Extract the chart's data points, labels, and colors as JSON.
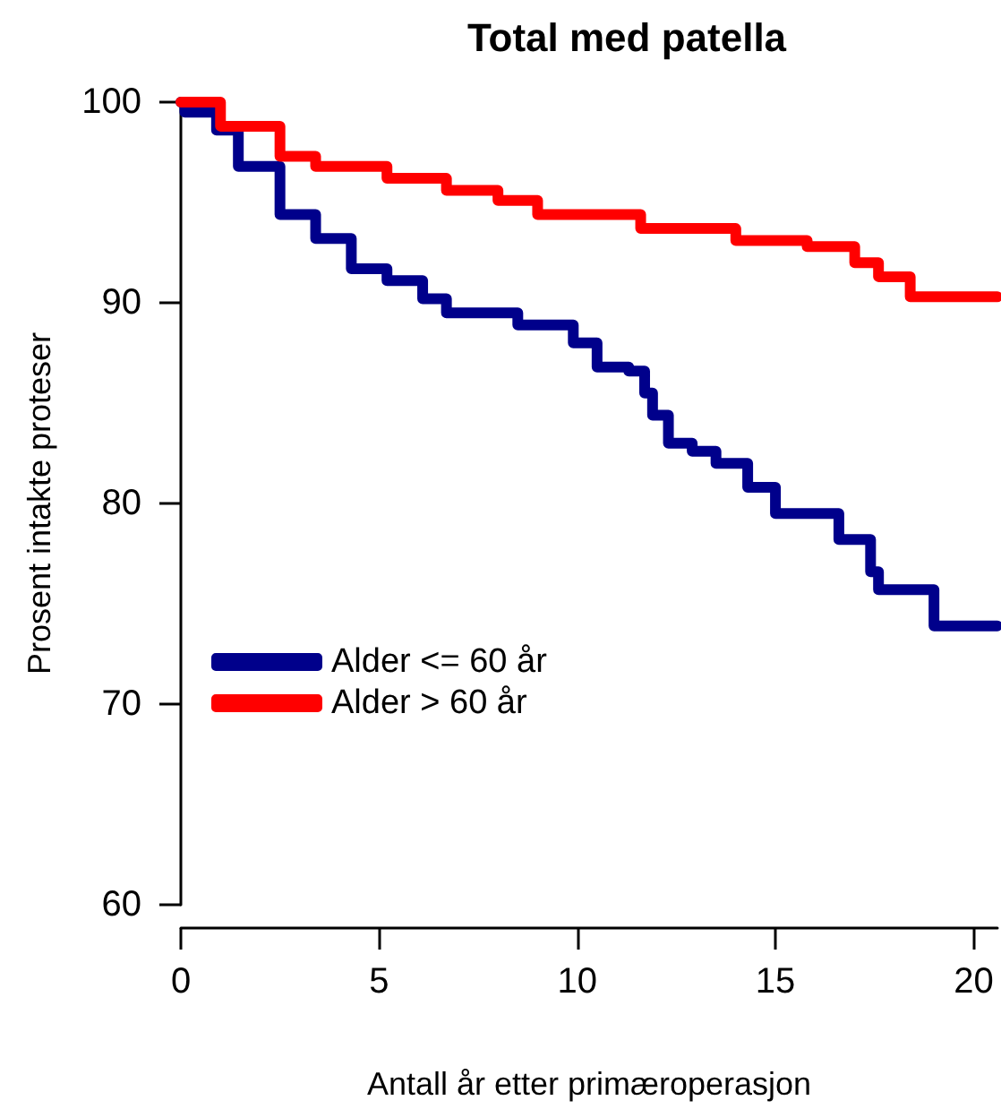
{
  "chart_data": {
    "type": "step",
    "title": "Total med patella",
    "xlabel": "Antall år etter primæroperasjon",
    "ylabel": "Prosent intakte proteser",
    "xlim": [
      0,
      20.6
    ],
    "xticks": [
      0,
      5,
      10,
      15,
      20
    ],
    "ylim": [
      60,
      100
    ],
    "yticks": [
      60,
      70,
      80,
      90,
      100
    ],
    "legend": "bottom left",
    "series": [
      {
        "name": "Alder <= 60 år",
        "color": "#00008b",
        "x": [
          0,
          0.1,
          0.9,
          1.45,
          2.5,
          3.4,
          4.3,
          5.2,
          6.1,
          6.7,
          8.5,
          9.9,
          10.5,
          11.3,
          11.7,
          11.9,
          12.3,
          12.9,
          13.5,
          14.3,
          15.0,
          16.6,
          17.4,
          17.6,
          19.0,
          20.6
        ],
        "values": [
          100,
          99.5,
          98.6,
          96.8,
          94.4,
          93.2,
          91.7,
          91.1,
          90.2,
          89.5,
          88.9,
          88.0,
          86.8,
          86.6,
          85.5,
          84.4,
          83.0,
          82.6,
          82.0,
          80.8,
          79.5,
          78.2,
          76.6,
          75.7,
          73.9,
          73.9
        ]
      },
      {
        "name": "Alder > 60 år",
        "color": "#ff0000",
        "x": [
          0,
          1.0,
          2.5,
          3.4,
          5.2,
          6.7,
          8.0,
          9.0,
          11.6,
          14.0,
          15.8,
          17.0,
          17.6,
          18.4,
          20.6
        ],
        "values": [
          100,
          98.8,
          97.3,
          96.8,
          96.2,
          95.6,
          95.1,
          94.4,
          93.7,
          93.1,
          92.8,
          92.0,
          91.3,
          90.3,
          90.3
        ]
      }
    ]
  }
}
